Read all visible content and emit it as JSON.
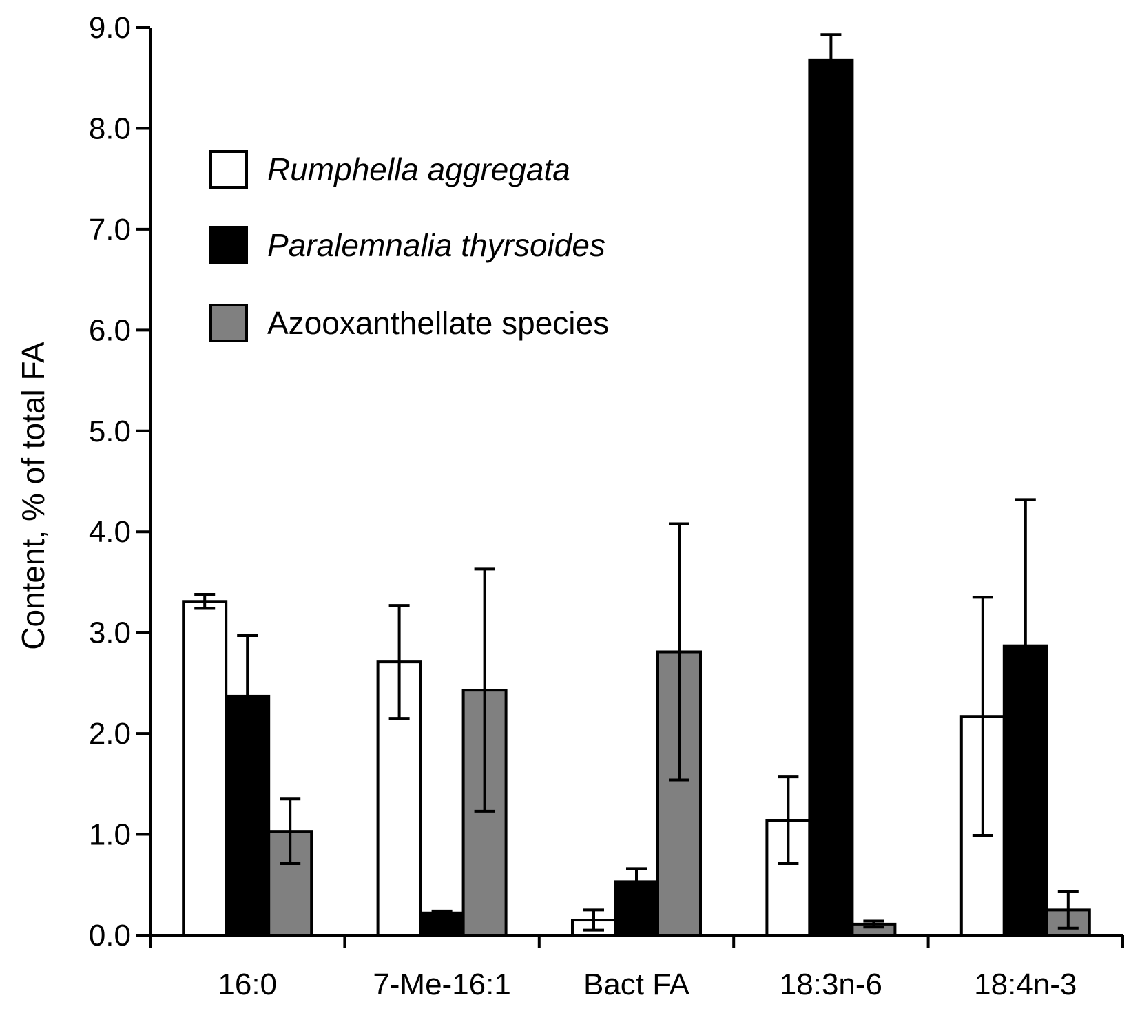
{
  "chart_data": {
    "type": "bar",
    "title": "",
    "xlabel": "",
    "ylabel": "Content, % of total FA",
    "ylim": [
      0,
      9
    ],
    "yticks": [
      "0.0",
      "1.0",
      "2.0",
      "3.0",
      "4.0",
      "5.0",
      "6.0",
      "7.0",
      "8.0",
      "9.0"
    ],
    "categories": [
      "16:0",
      "7-Me-16:1",
      "Bact FA",
      "18:3n-6",
      "18:4n-3"
    ],
    "legend_position": "top-left",
    "series": [
      {
        "name": "Rumphella aggregata",
        "italic": true,
        "color": "#ffffff",
        "values": [
          3.31,
          2.71,
          0.15,
          1.14,
          2.17
        ],
        "errors": [
          0.07,
          0.56,
          0.1,
          0.43,
          1.18
        ]
      },
      {
        "name": "Paralemnalia thyrsoides",
        "italic": true,
        "color": "#000000",
        "values": [
          2.37,
          0.22,
          0.53,
          8.68,
          2.87
        ],
        "errors": [
          0.6,
          0.02,
          0.13,
          0.25,
          1.45
        ]
      },
      {
        "name": "Azooxanthellate species",
        "italic": false,
        "color": "#808080",
        "values": [
          1.03,
          2.43,
          2.81,
          0.11,
          0.25
        ],
        "errors": [
          0.32,
          1.2,
          1.27,
          0.03,
          0.18
        ]
      }
    ]
  }
}
